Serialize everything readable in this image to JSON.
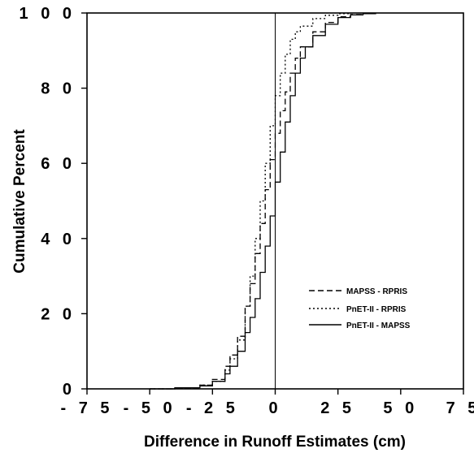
{
  "chart_data": {
    "type": "line",
    "title": "",
    "xlabel": "Difference in Runoff Estimates (cm)",
    "ylabel": "Cumulative Percent",
    "xlim": [
      -75,
      75
    ],
    "ylim": [
      0,
      100
    ],
    "x_ticks": [
      -75,
      -50,
      -25,
      0,
      25,
      50,
      75
    ],
    "y_ticks": [
      0,
      20,
      40,
      60,
      80,
      100
    ],
    "x_tick_labels": [
      "- 7 5",
      "- 5 0",
      "- 2 5",
      "0",
      "2 5",
      "5 0",
      "7 5"
    ],
    "y_tick_labels": [
      "0",
      "2 0",
      "4 0",
      "6 0",
      "8 0",
      "1 0 0"
    ],
    "reference_line_x": 0,
    "grid": false,
    "legend_position": "lower-right",
    "series": [
      {
        "name": "MAPSS - RPRIS",
        "line_style": "dashed",
        "x": [
          -50,
          -40,
          -30,
          -25,
          -20,
          -18,
          -15,
          -12,
          -10,
          -8,
          -6,
          -4,
          -2,
          0,
          2,
          4,
          6,
          8,
          10,
          15,
          20,
          25,
          30,
          35
        ],
        "y": [
          0,
          0.3,
          1,
          2.5,
          6,
          9,
          14,
          22,
          28,
          36,
          44,
          53,
          61,
          68,
          74,
          79,
          84,
          88,
          91,
          95,
          97.5,
          99,
          99.6,
          100
        ]
      },
      {
        "name": "PnET-II - RPRIS",
        "line_style": "dotted",
        "x": [
          -50,
          -40,
          -30,
          -25,
          -20,
          -18,
          -15,
          -12,
          -10,
          -8,
          -6,
          -4,
          -2,
          0,
          2,
          4,
          6,
          8,
          10,
          15,
          20,
          25,
          30
        ],
        "y": [
          0,
          0.3,
          1,
          2,
          5,
          8,
          13,
          22,
          30,
          40,
          50,
          60,
          70,
          78,
          84,
          89,
          93,
          95,
          96.5,
          98.5,
          99.4,
          99.8,
          100
        ]
      },
      {
        "name": "PnET-II - MAPSS",
        "line_style": "solid",
        "x": [
          -50,
          -40,
          -30,
          -25,
          -20,
          -18,
          -15,
          -12,
          -10,
          -8,
          -6,
          -4,
          -2,
          0,
          2,
          4,
          6,
          8,
          10,
          12,
          15,
          20,
          25,
          30,
          35,
          40
        ],
        "y": [
          0,
          0.3,
          0.8,
          2,
          4,
          6,
          10,
          15,
          19,
          24,
          31,
          38,
          46,
          55,
          63,
          71,
          78,
          84,
          88,
          91,
          94,
          97,
          98.8,
          99.5,
          99.8,
          100
        ]
      }
    ]
  }
}
